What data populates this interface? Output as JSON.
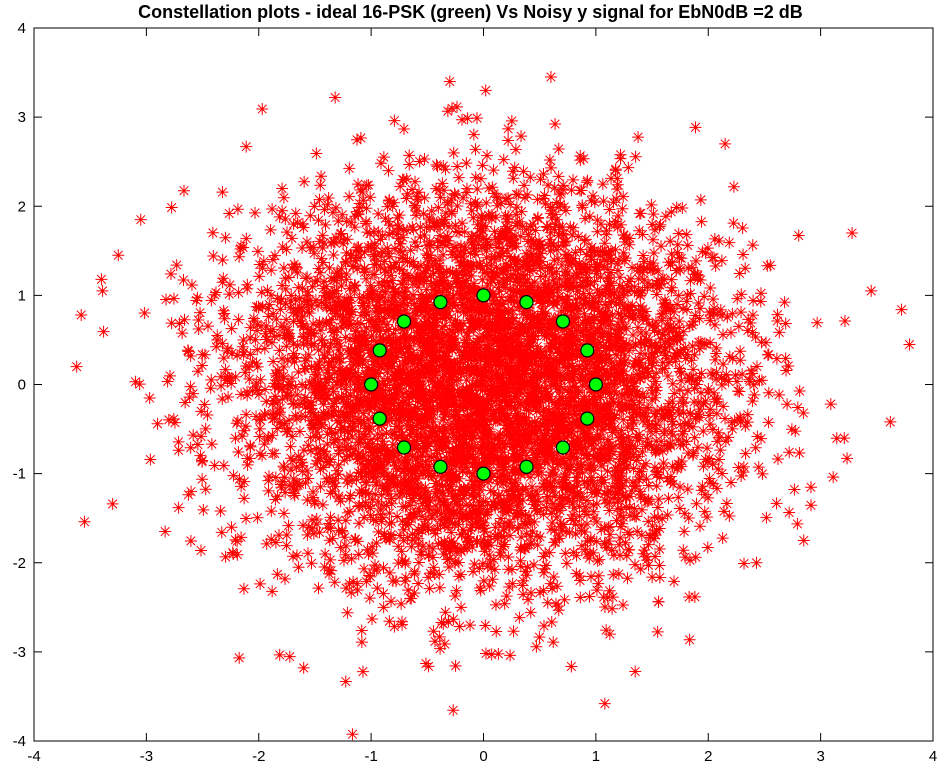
{
  "chart_data": {
    "type": "scatter",
    "title": "Constellation plots - ideal 16-PSK (green) Vs Noisy y signal for EbN0dB =2 dB",
    "xlabel": "",
    "ylabel": "",
    "xlim": [
      -4,
      4
    ],
    "ylim": [
      -4,
      4
    ],
    "xticks": [
      -4,
      -3,
      -2,
      -1,
      0,
      1,
      2,
      3,
      4
    ],
    "yticks": [
      -4,
      -3,
      -2,
      -1,
      0,
      1,
      2,
      3,
      4
    ],
    "grid": false,
    "series": [
      {
        "marker": "asterisk",
        "color": "#ff0000",
        "distribution": "16-PSK symbols plus complex Gaussian noise",
        "noise_sigma_per_dim": 0.8,
        "point_count": 6000,
        "outlier_points": [
          [
            -3.62,
            0.2
          ],
          [
            -3.58,
            0.78
          ],
          [
            -3.55,
            -1.54
          ],
          [
            -3.4,
            1.18
          ],
          [
            -3.25,
            1.45
          ],
          [
            -3.05,
            1.85
          ],
          [
            -3.3,
            -1.34
          ],
          [
            1.08,
            -3.58
          ],
          [
            3.72,
            0.84
          ],
          [
            3.62,
            -0.42
          ],
          [
            3.28,
            1.7
          ],
          [
            0.6,
            3.45
          ],
          [
            -1.32,
            3.22
          ],
          [
            -0.3,
            3.4
          ],
          [
            0.02,
            3.3
          ],
          [
            -1.6,
            -3.18
          ],
          [
            1.35,
            -3.22
          ],
          [
            2.15,
            2.7
          ],
          [
            2.85,
            -1.75
          ],
          [
            3.45,
            1.05
          ]
        ]
      },
      {
        "marker": "circle",
        "color": "#00ff00",
        "edge_color": "#000000",
        "points": [
          [
            1.0,
            0.0
          ],
          [
            0.9239,
            0.3827
          ],
          [
            0.7071,
            0.7071
          ],
          [
            0.3827,
            0.9239
          ],
          [
            0.0,
            1.0
          ],
          [
            -0.3827,
            0.9239
          ],
          [
            -0.7071,
            0.7071
          ],
          [
            -0.9239,
            0.3827
          ],
          [
            -1.0,
            0.0
          ],
          [
            -0.9239,
            -0.3827
          ],
          [
            -0.7071,
            -0.7071
          ],
          [
            -0.3827,
            -0.9239
          ],
          [
            0.0,
            -1.0
          ],
          [
            0.3827,
            -0.9239
          ],
          [
            0.7071,
            -0.7071
          ],
          [
            0.9239,
            -0.3827
          ]
        ]
      }
    ]
  }
}
